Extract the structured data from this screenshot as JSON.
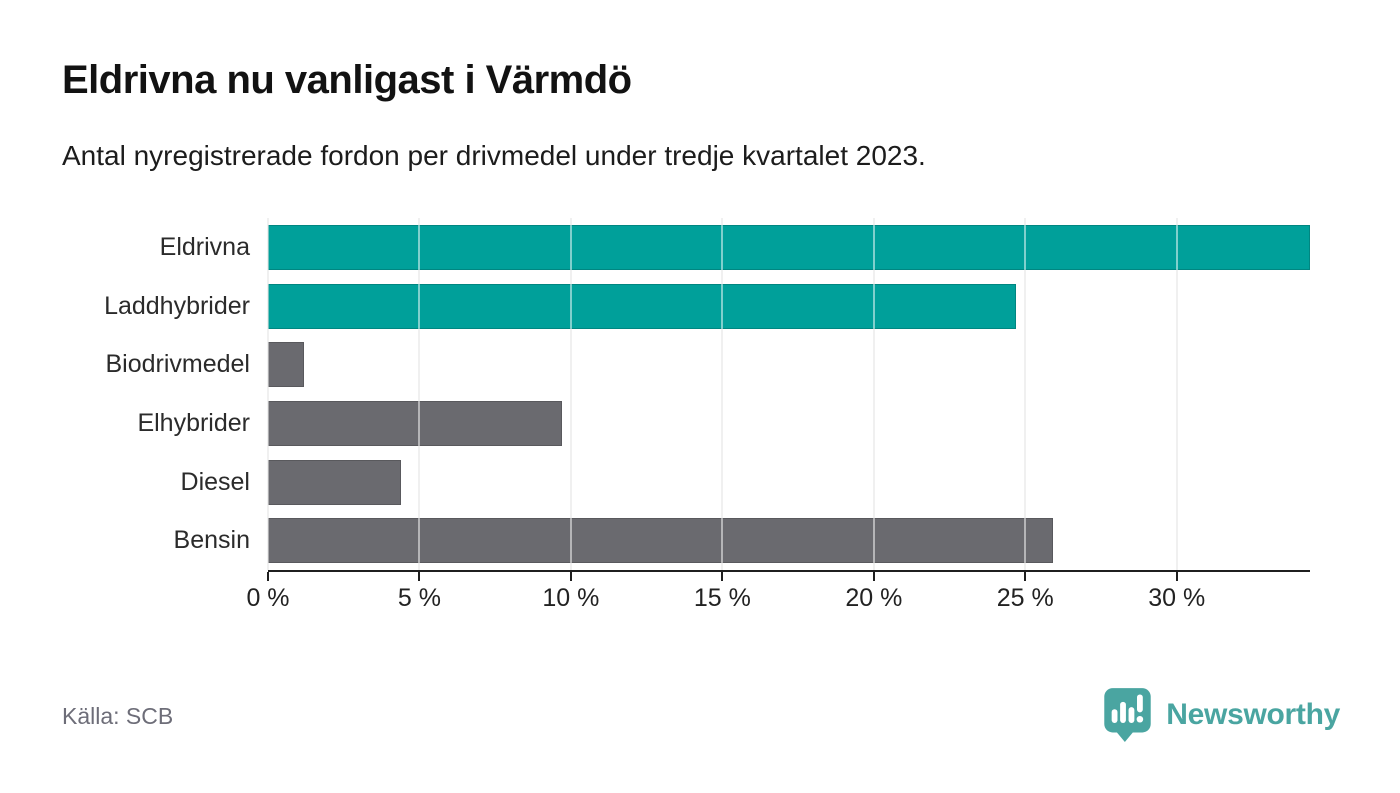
{
  "header": {
    "title": "Eldrivna nu vanligast i Värmdö",
    "subtitle": "Antal nyregistrerade fordon per drivmedel under tredje kvartalet 2023."
  },
  "chart_data": {
    "type": "bar",
    "orientation": "horizontal",
    "title": "Eldrivna nu vanligast i Värmdö",
    "subtitle": "Antal nyregistrerade fordon per drivmedel under tredje kvartalet 2023.",
    "categories": [
      "Eldrivna",
      "Laddhybrider",
      "Biodrivmedel",
      "Elhybrider",
      "Diesel",
      "Bensin"
    ],
    "values": [
      34.4,
      24.7,
      1.2,
      9.7,
      4.4,
      25.9
    ],
    "unit": "%",
    "xlim": [
      0,
      34.4
    ],
    "ticks": [
      0,
      5,
      10,
      15,
      20,
      25,
      30
    ],
    "tick_labels": [
      "0 %",
      "5 %",
      "10 %",
      "15 %",
      "20 %",
      "25 %",
      "30 %"
    ],
    "grid": true,
    "legend": "none",
    "highlight_color": "#00a09a",
    "base_color": "#6a6a6f",
    "bar_colors": [
      "#00a09a",
      "#00a09a",
      "#6a6a6f",
      "#6a6a6f",
      "#6a6a6f",
      "#6a6a6f"
    ],
    "gridline_color": "#e0e0e0",
    "axis_color": "#1f1f1f"
  },
  "footer": {
    "source": "Källa: SCB",
    "brand": "Newsworthy",
    "brand_color": "#4aa5a1"
  }
}
